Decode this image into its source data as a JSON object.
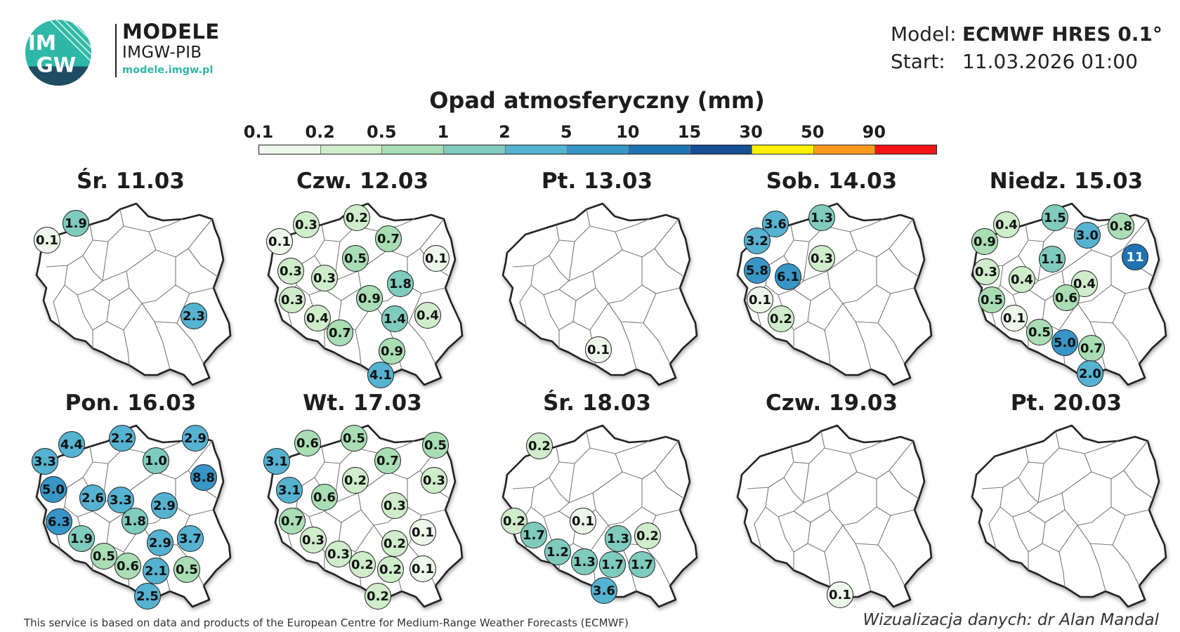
{
  "brand": {
    "logo_text_top": "IM",
    "logo_text_bottom": "GW",
    "title": "MODELE",
    "subtitle": "IMGW-PIB",
    "url": "modele.imgw.pl"
  },
  "meta": {
    "model_label": "Model:",
    "model_value": "ECMWF HRES 0.1°",
    "start_label": "Start:",
    "start_value": "11.03.2026 01:00"
  },
  "legend": {
    "title": "Opad atmosferyczny (mm)",
    "ticks": [
      "0.1",
      "0.2",
      "0.5",
      "1",
      "2",
      "5",
      "10",
      "15",
      "30",
      "50",
      "90"
    ],
    "colors": [
      "#eef8ea",
      "#cfeccb",
      "#a9ddb4",
      "#7fcbbd",
      "#56b2d1",
      "#3796c7",
      "#1f73b3",
      "#154f95",
      "#fff000",
      "#ff9a1d",
      "#f01414"
    ]
  },
  "colors": {
    "c0.1": "#eef8ea",
    "c0.2": "#cfeccb",
    "c0.5": "#a9ddb4",
    "c1": "#7fcbbd",
    "c2": "#56b2d1",
    "c5": "#3796c7",
    "c10": "#1f73b3"
  },
  "panels": [
    {
      "title": "Śr. 11.03",
      "values": [
        "0.1",
        "1.9",
        "2.3"
      ]
    },
    {
      "title": "Czw. 12.03",
      "values": [
        "0.3",
        "0.2",
        "0.1",
        "0.7",
        "0.1",
        "0.5",
        "0.3",
        "0.3",
        "1.8",
        "0.3",
        "0.9",
        "0.4",
        "1.4",
        "0.4",
        "0.7",
        "0.9",
        "4.1"
      ]
    },
    {
      "title": "Pt. 13.03",
      "values": [
        "0.1"
      ]
    },
    {
      "title": "Sob. 14.03",
      "values": [
        "3.6",
        "1.3",
        "3.2",
        "0.3",
        "5.8",
        "6.1",
        "0.1",
        "0.2"
      ]
    },
    {
      "title": "Niedz. 15.03",
      "values": [
        "0.4",
        "1.5",
        "0.8",
        "0.9",
        "3.0",
        "11",
        "1.1",
        "0.3",
        "0.4",
        "0.4",
        "0.5",
        "0.6",
        "0.1",
        "0.5",
        "5.0",
        "0.7",
        "2.0"
      ]
    },
    {
      "title": "Pon. 16.03",
      "values": [
        "4.4",
        "2.2",
        "2.9",
        "3.3",
        "1.0",
        "8.8",
        "5.0",
        "2.6",
        "3.3",
        "2.9",
        "6.3",
        "1.8",
        "1.9",
        "2.9",
        "3.7",
        "0.5",
        "0.6",
        "2.1",
        "0.5",
        "2.5"
      ]
    },
    {
      "title": "Wt. 17.03",
      "values": [
        "0.6",
        "0.5",
        "0.5",
        "3.1",
        "0.7",
        "0.2",
        "0.3",
        "3.1",
        "0.6",
        "0.3",
        "0.7",
        "0.1",
        "0.3",
        "0.2",
        "0.3",
        "0.2",
        "0.2",
        "0.1",
        "0.2"
      ]
    },
    {
      "title": "Śr. 18.03",
      "values": [
        "0.2",
        "0.2",
        "0.1",
        "1.7",
        "1.3",
        "0.2",
        "1.2",
        "1.3",
        "1.7",
        "1.7",
        "3.6"
      ]
    },
    {
      "title": "Czw. 19.03",
      "values": [
        "0.1"
      ]
    },
    {
      "title": "Pt. 20.03",
      "values": []
    }
  ],
  "footer": {
    "left": "This service is based on data and products of the European Centre for Medium-Range Weather Forecasts (ECMWF)",
    "right": "Wizualizacja danych: dr Alan Mandal"
  }
}
